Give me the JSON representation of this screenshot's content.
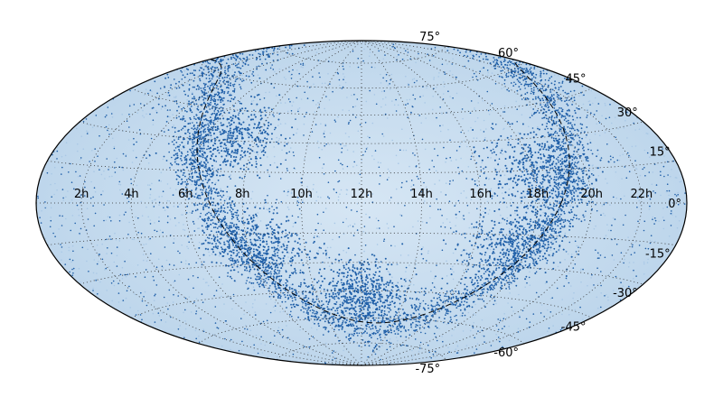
{
  "chart_data": {
    "type": "scatter",
    "projection": "aitoff-hammer all-sky",
    "title": "",
    "grid": true,
    "grid_style": "dotted",
    "ra_tick_labels": [
      "22h",
      "20h",
      "18h",
      "16h",
      "14h",
      "12h",
      "10h",
      "8h",
      "6h",
      "4h",
      "2h"
    ],
    "dec_tick_labels_left": [
      "75°",
      "60°",
      "45°",
      "30°",
      "15°",
      "0°",
      "-15°",
      "-30°",
      "-45°",
      "-60°",
      "-75°"
    ],
    "ra_range_hours": [
      24,
      0
    ],
    "dec_range_deg": [
      -90,
      90
    ],
    "point_color": "#1f5fa8",
    "background_point_color": "#a9c8e6",
    "ecliptic_or_galactic_plane": {
      "style": "dashed",
      "color": "#000000",
      "description_visible": false
    },
    "density_features": [
      {
        "region": "dense band",
        "ra_h": 18.3,
        "dec": 15,
        "level": 0.9
      },
      {
        "region": "dense band",
        "ra_h": 17.5,
        "dec": -20,
        "level": 0.85
      },
      {
        "region": "dense band",
        "ra_h": 12,
        "dec": -45,
        "level": 0.95
      },
      {
        "region": "dense band",
        "ra_h": 8.2,
        "dec": -20,
        "level": 0.85
      },
      {
        "region": "dense band",
        "ra_h": 7,
        "dec": 30,
        "level": 0.8
      }
    ]
  }
}
